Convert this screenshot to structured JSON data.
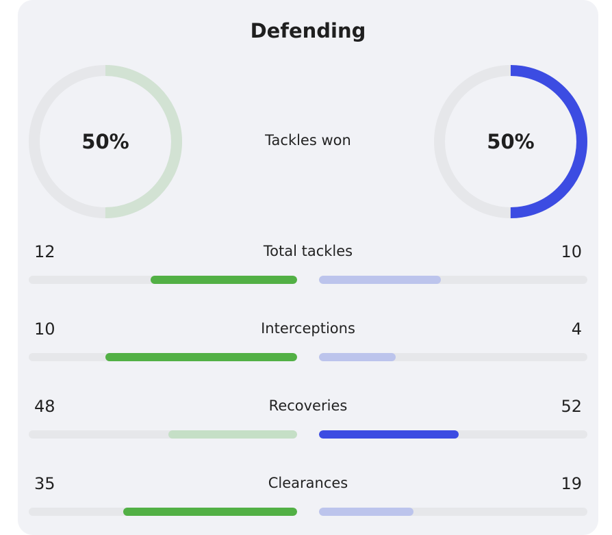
{
  "section": {
    "title": "Defending"
  },
  "colors": {
    "home_strong": "#52b045",
    "home_light": "#c5dfc6",
    "away_strong": "#3c4ce2",
    "away_light": "#bcc4ec",
    "track": "#e6e7ea"
  },
  "tackles_won": {
    "label": "Tackles won",
    "home_pct": "50%",
    "away_pct": "50%",
    "home_value": 0.5,
    "away_value": 0.5
  },
  "stats": [
    {
      "label": "Total tackles",
      "home": "12",
      "away": "10",
      "home_share": 0.545,
      "away_share": 0.455,
      "leader": "home"
    },
    {
      "label": "Interceptions",
      "home": "10",
      "away": "4",
      "home_share": 0.714,
      "away_share": 0.286,
      "leader": "home"
    },
    {
      "label": "Recoveries",
      "home": "48",
      "away": "52",
      "home_share": 0.48,
      "away_share": 0.52,
      "leader": "away"
    },
    {
      "label": "Clearances",
      "home": "35",
      "away": "19",
      "home_share": 0.648,
      "away_share": 0.352,
      "leader": "home"
    }
  ]
}
